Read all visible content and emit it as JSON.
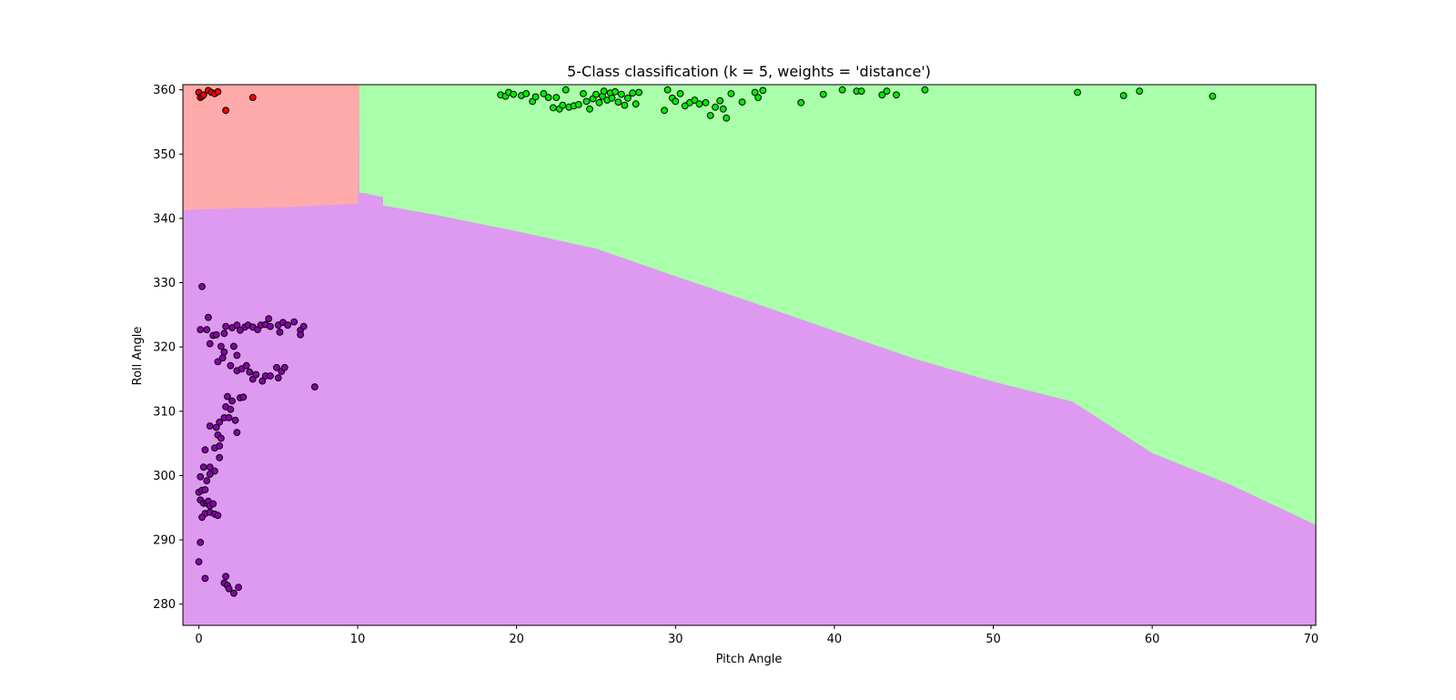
{
  "chart_data": {
    "type": "scatter",
    "title": "5-Class classification (k = 5, weights = 'distance')",
    "xlabel": "Pitch Angle",
    "ylabel": "Roll Angle",
    "xlim": [
      -1,
      70.3
    ],
    "ylim": [
      276.7,
      360.8
    ],
    "xticks": [
      0,
      10,
      20,
      30,
      40,
      50,
      60,
      70
    ],
    "yticks": [
      280,
      290,
      300,
      310,
      320,
      330,
      340,
      350,
      360
    ],
    "grid": false,
    "legend": "none",
    "regions": {
      "red_region_color": "#ffaaaa",
      "green_region_color": "#aaffaa",
      "purple_region_color": "#dd9af0",
      "red_green_split_x": 10.1,
      "red_purple_boundary": [
        [
          -1,
          341.2
        ],
        [
          0,
          341.4
        ],
        [
          3,
          341.6
        ],
        [
          6,
          341.8
        ],
        [
          10,
          342.3
        ]
      ],
      "green_purple_step": [
        [
          10,
          344.0
        ],
        [
          10.5,
          343.9
        ],
        [
          11.0,
          343.6
        ],
        [
          11.6,
          343.3
        ],
        [
          11.6,
          342.0
        ]
      ],
      "green_purple_boundary": [
        [
          11.6,
          342.0
        ],
        [
          15,
          340.5
        ],
        [
          20,
          338.0
        ],
        [
          25,
          335.3
        ],
        [
          30,
          331.0
        ],
        [
          35,
          326.8
        ],
        [
          40,
          322.5
        ],
        [
          45,
          318.2
        ],
        [
          50,
          314.6
        ],
        [
          55,
          311.5
        ],
        [
          60,
          303.5
        ],
        [
          65,
          298.5
        ],
        [
          70.3,
          292.3
        ]
      ]
    },
    "series": [
      {
        "color": "#ff0000",
        "points": [
          [
            0,
            359.6
          ],
          [
            0.1,
            358.8
          ],
          [
            0.2,
            359.0
          ],
          [
            0.3,
            359.2
          ],
          [
            0.6,
            359.9
          ],
          [
            0.8,
            359.6
          ],
          [
            1.0,
            359.4
          ],
          [
            1.2,
            359.7
          ],
          [
            1.7,
            356.8
          ],
          [
            3.4,
            358.8
          ]
        ]
      },
      {
        "color": "#00ee00",
        "points": [
          [
            19.0,
            359.2
          ],
          [
            19.3,
            359.0
          ],
          [
            19.5,
            359.6
          ],
          [
            19.8,
            359.3
          ],
          [
            20.3,
            359.1
          ],
          [
            20.6,
            359.4
          ],
          [
            21.0,
            358.2
          ],
          [
            21.2,
            358.9
          ],
          [
            21.7,
            359.4
          ],
          [
            22.0,
            358.8
          ],
          [
            22.3,
            357.2
          ],
          [
            22.5,
            358.8
          ],
          [
            22.7,
            357.0
          ],
          [
            22.9,
            357.6
          ],
          [
            23.1,
            360.0
          ],
          [
            23.3,
            357.3
          ],
          [
            23.6,
            357.5
          ],
          [
            23.9,
            357.7
          ],
          [
            24.2,
            359.4
          ],
          [
            24.4,
            358.2
          ],
          [
            24.6,
            357.0
          ],
          [
            24.8,
            358.6
          ],
          [
            25.0,
            359.3
          ],
          [
            25.2,
            358.0
          ],
          [
            25.4,
            359.0
          ],
          [
            25.5,
            359.8
          ],
          [
            25.7,
            358.4
          ],
          [
            25.9,
            359.5
          ],
          [
            26.0,
            358.7
          ],
          [
            26.2,
            359.7
          ],
          [
            26.4,
            358.1
          ],
          [
            26.6,
            359.3
          ],
          [
            26.8,
            357.6
          ],
          [
            27.0,
            358.7
          ],
          [
            27.3,
            359.5
          ],
          [
            27.5,
            357.8
          ],
          [
            27.7,
            359.6
          ],
          [
            29.3,
            356.8
          ],
          [
            29.5,
            360.0
          ],
          [
            29.8,
            358.7
          ],
          [
            30.0,
            358.2
          ],
          [
            30.3,
            359.4
          ],
          [
            30.6,
            357.5
          ],
          [
            30.9,
            358.0
          ],
          [
            31.2,
            358.4
          ],
          [
            31.5,
            357.8
          ],
          [
            31.9,
            358.0
          ],
          [
            32.2,
            356.0
          ],
          [
            32.5,
            357.3
          ],
          [
            32.8,
            358.3
          ],
          [
            33.0,
            357.0
          ],
          [
            33.2,
            355.6
          ],
          [
            33.5,
            359.4
          ],
          [
            34.2,
            358.1
          ],
          [
            35.0,
            359.6
          ],
          [
            35.2,
            358.8
          ],
          [
            35.5,
            359.9
          ],
          [
            37.9,
            358.0
          ],
          [
            39.3,
            359.3
          ],
          [
            40.5,
            360.0
          ],
          [
            41.4,
            359.8
          ],
          [
            41.7,
            359.8
          ],
          [
            43.0,
            359.2
          ],
          [
            43.3,
            359.8
          ],
          [
            43.9,
            359.2
          ],
          [
            45.7,
            360.0
          ],
          [
            55.3,
            359.6
          ],
          [
            58.2,
            359.1
          ],
          [
            59.2,
            359.8
          ],
          [
            63.8,
            359.0
          ]
        ]
      },
      {
        "color": "#8800aa",
        "points": [
          [
            0.2,
            329.4
          ],
          [
            0.6,
            324.6
          ],
          [
            0.1,
            322.7
          ],
          [
            0.5,
            322.7
          ],
          [
            0.9,
            321.8
          ],
          [
            1.1,
            321.9
          ],
          [
            0.7,
            320.5
          ],
          [
            1.4,
            320.1
          ],
          [
            1.6,
            322.1
          ],
          [
            1.7,
            323.2
          ],
          [
            2.1,
            323.0
          ],
          [
            2.4,
            323.4
          ],
          [
            2.6,
            322.6
          ],
          [
            2.9,
            323.1
          ],
          [
            3.1,
            323.4
          ],
          [
            3.4,
            323.1
          ],
          [
            3.7,
            322.7
          ],
          [
            3.9,
            323.4
          ],
          [
            4.2,
            323.5
          ],
          [
            4.5,
            323.2
          ],
          [
            5.0,
            323.4
          ],
          [
            5.3,
            323.8
          ],
          [
            5.6,
            323.4
          ],
          [
            6.0,
            323.9
          ],
          [
            6.4,
            322.6
          ],
          [
            6.6,
            323.2
          ],
          [
            4.4,
            324.4
          ],
          [
            1.2,
            317.7
          ],
          [
            1.5,
            318.3
          ],
          [
            1.6,
            319.2
          ],
          [
            2.2,
            320.1
          ],
          [
            2.4,
            318.7
          ],
          [
            2.0,
            317.1
          ],
          [
            2.4,
            316.3
          ],
          [
            2.7,
            316.6
          ],
          [
            3.0,
            317.1
          ],
          [
            3.2,
            316.1
          ],
          [
            3.4,
            315.0
          ],
          [
            3.6,
            315.7
          ],
          [
            4.0,
            314.7
          ],
          [
            4.2,
            315.5
          ],
          [
            4.5,
            315.5
          ],
          [
            4.9,
            316.8
          ],
          [
            5.0,
            315.2
          ],
          [
            5.2,
            316.2
          ],
          [
            5.4,
            316.8
          ],
          [
            5.1,
            322.3
          ],
          [
            6.4,
            321.9
          ],
          [
            7.3,
            313.8
          ],
          [
            1.8,
            312.3
          ],
          [
            2.1,
            311.6
          ],
          [
            2.6,
            312.1
          ],
          [
            2.8,
            312.2
          ],
          [
            1.7,
            310.7
          ],
          [
            2.0,
            310.3
          ],
          [
            1.6,
            309.0
          ],
          [
            1.9,
            309.0
          ],
          [
            2.3,
            308.6
          ],
          [
            2.4,
            306.7
          ],
          [
            0.7,
            307.7
          ],
          [
            1.1,
            307.5
          ],
          [
            1.3,
            308.3
          ],
          [
            1.2,
            306.3
          ],
          [
            1.4,
            305.8
          ],
          [
            0.4,
            304.0
          ],
          [
            1.0,
            304.3
          ],
          [
            1.3,
            304.6
          ],
          [
            1.3,
            302.8
          ],
          [
            0.3,
            301.3
          ],
          [
            0.7,
            301.3
          ],
          [
            1.0,
            300.7
          ],
          [
            0.1,
            299.8
          ],
          [
            0.5,
            299.2
          ],
          [
            0.7,
            300.2
          ],
          [
            0.0,
            297.4
          ],
          [
            0.2,
            297.7
          ],
          [
            0.4,
            297.8
          ],
          [
            0.1,
            296.2
          ],
          [
            0.3,
            295.7
          ],
          [
            0.5,
            295.7
          ],
          [
            0.6,
            296.0
          ],
          [
            0.7,
            295.3
          ],
          [
            0.9,
            295.6
          ],
          [
            0.4,
            294.1
          ],
          [
            0.7,
            294.3
          ],
          [
            1.0,
            294.0
          ],
          [
            1.2,
            293.8
          ],
          [
            0.2,
            293.5
          ],
          [
            0.1,
            289.6
          ],
          [
            0.0,
            286.6
          ],
          [
            0.4,
            284.0
          ],
          [
            1.7,
            284.3
          ],
          [
            1.6,
            283.3
          ],
          [
            1.8,
            282.9
          ],
          [
            1.9,
            282.4
          ],
          [
            2.5,
            282.6
          ],
          [
            2.2,
            281.7
          ]
        ]
      }
    ]
  }
}
